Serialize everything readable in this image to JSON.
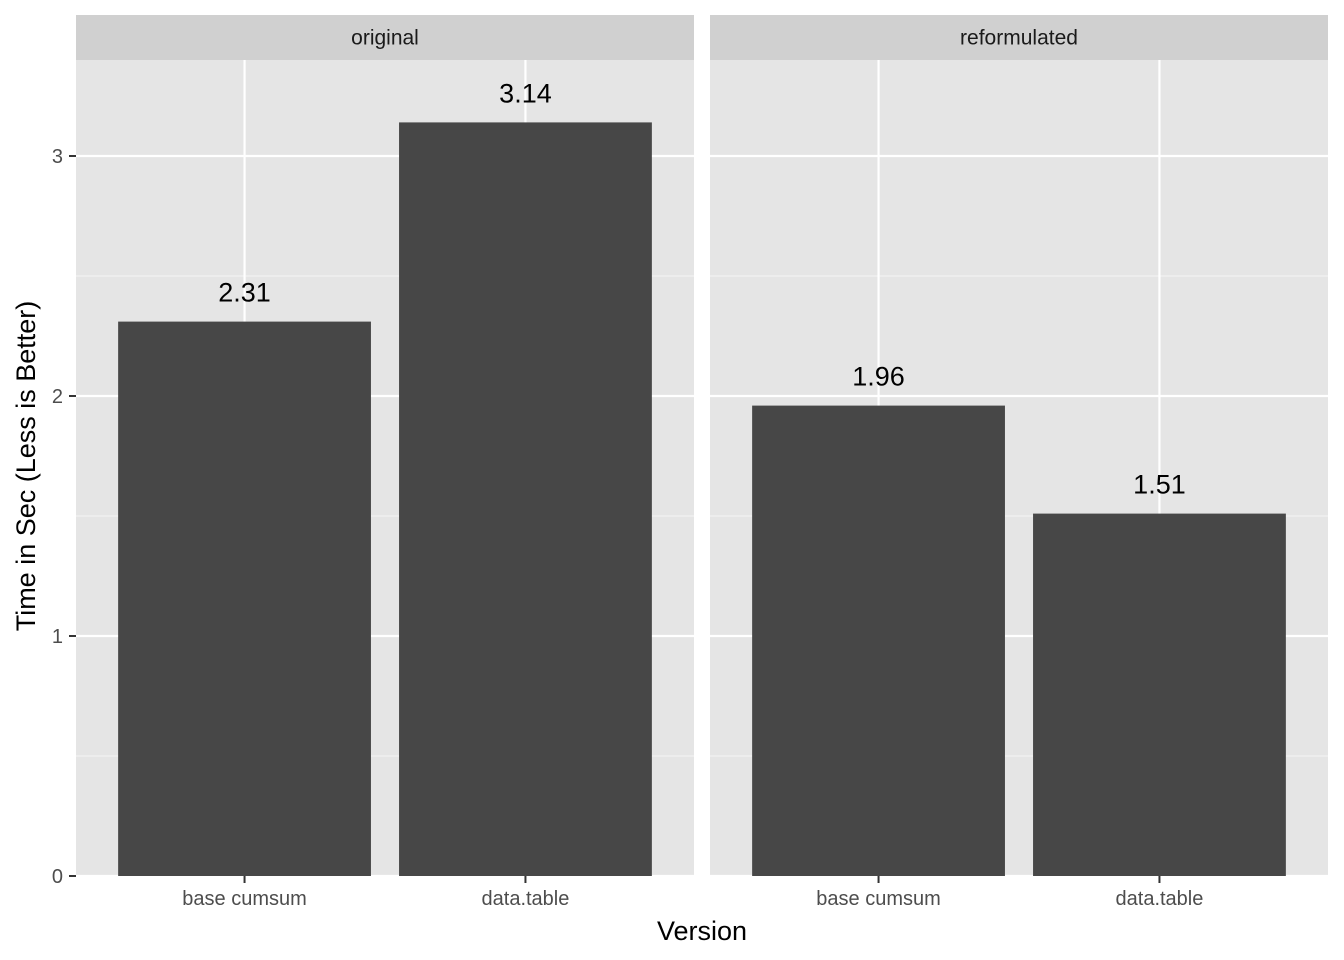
{
  "chart_data": {
    "type": "bar",
    "xlabel": "Version",
    "ylabel": "Time in Sec (Less is Better)",
    "ylim": [
      0,
      3.4
    ],
    "yticks": [
      0,
      1,
      2,
      3
    ],
    "grid": true,
    "bar_color": "#474747",
    "panel_bg": "#e5e5e5",
    "strip_bg": "#d0d0d0",
    "facets": [
      {
        "name": "original",
        "categories": [
          "base cumsum",
          "data.table"
        ],
        "values": [
          2.31,
          3.14
        ],
        "labels": [
          "2.31",
          "3.14"
        ]
      },
      {
        "name": "reformulated",
        "categories": [
          "base cumsum",
          "data.table"
        ],
        "values": [
          1.96,
          1.51
        ],
        "labels": [
          "1.96",
          "1.51"
        ]
      }
    ]
  }
}
